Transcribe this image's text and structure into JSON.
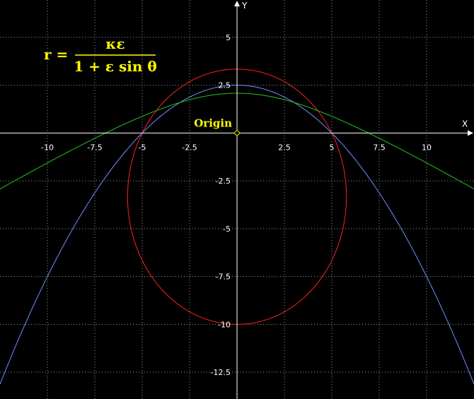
{
  "chart_data": {
    "type": "line",
    "title": "",
    "xlabel": "X",
    "ylabel": "Y",
    "xlim": [
      -12.5,
      12.5
    ],
    "ylim": [
      -13.9,
      6.95
    ],
    "grid": true,
    "x_ticks": [
      -10,
      -7.5,
      -5,
      -2.5,
      2.5,
      5,
      7.5,
      10
    ],
    "x_tick_labels": [
      "-10",
      "-7.5",
      "-5",
      "-2.5",
      "2.5",
      "5",
      "7.5",
      "10"
    ],
    "y_ticks": [
      5,
      2.5,
      -2.5,
      -5,
      -7.5,
      -10,
      -12.5
    ],
    "y_tick_labels": [
      "5",
      "2.5",
      "-2.5",
      "-5",
      "-7.5",
      "-10",
      "-12.5"
    ],
    "annotations": [
      {
        "text": "Origin",
        "x": 0,
        "y": 0
      }
    ],
    "formula": {
      "lhs": "r =",
      "numerator": "κε",
      "denominator": "1 + ε sin θ"
    },
    "series": [
      {
        "kind": "ellipse",
        "color": "#ff2020",
        "center": [
          0,
          -3.33
        ],
        "semi_axes": [
          5.77,
          6.67
        ]
      },
      {
        "kind": "parabola",
        "color": "#6f8fff",
        "y_at_zero": 2.5,
        "x_roots": [
          -5,
          5
        ]
      },
      {
        "kind": "hyperbola",
        "color": "#22c422",
        "y_at_zero": 2.08,
        "x_roots": [
          -5,
          5
        ],
        "asymptote_slope": 0.6
      }
    ]
  }
}
